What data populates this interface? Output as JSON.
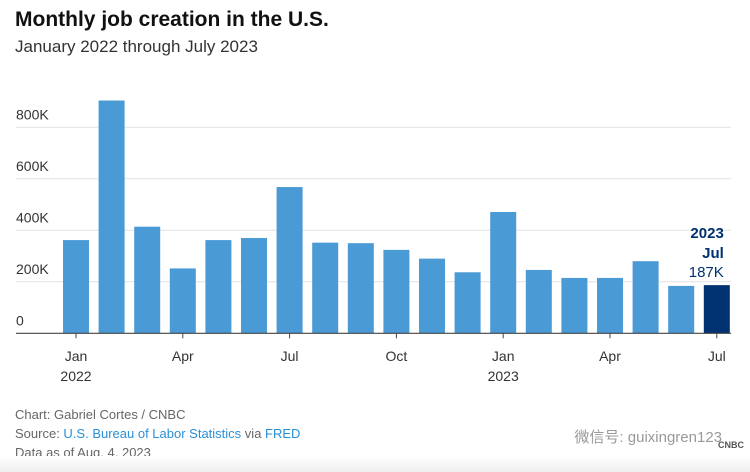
{
  "header": {
    "title": "Monthly job creation in the U.S.",
    "subtitle": "January 2022 through July 2023"
  },
  "chart_data": {
    "type": "bar",
    "categories": [
      "Jan 2022",
      "Feb 2022",
      "Mar 2022",
      "Apr 2022",
      "May 2022",
      "Jun 2022",
      "Jul 2022",
      "Aug 2022",
      "Sep 2022",
      "Oct 2022",
      "Nov 2022",
      "Dec 2022",
      "Jan 2023",
      "Feb 2023",
      "Mar 2023",
      "Apr 2023",
      "May 2023",
      "Jun 2023",
      "Jul 2023"
    ],
    "values": [
      362000,
      904000,
      414000,
      252000,
      362000,
      370000,
      568000,
      352000,
      350000,
      324000,
      290000,
      237000,
      471000,
      246000,
      215000,
      215000,
      280000,
      184000,
      187000
    ],
    "ylim": [
      0,
      900000
    ],
    "yticks": [
      {
        "v": 0,
        "label": "0"
      },
      {
        "v": 200000,
        "label": "200K"
      },
      {
        "v": 400000,
        "label": "400K"
      },
      {
        "v": 600000,
        "label": "600K"
      },
      {
        "v": 800000,
        "label": "800K"
      }
    ],
    "xticks": [
      {
        "i": 0,
        "label": "Jan",
        "year": "2022"
      },
      {
        "i": 3,
        "label": "Apr"
      },
      {
        "i": 6,
        "label": "Jul"
      },
      {
        "i": 9,
        "label": "Oct"
      },
      {
        "i": 12,
        "label": "Jan",
        "year": "2023"
      },
      {
        "i": 15,
        "label": "Apr"
      },
      {
        "i": 18,
        "label": "Jul"
      }
    ],
    "grid": true,
    "colors": {
      "bar": "#4a9ad6",
      "highlight": "#003170",
      "grid": "#e2e2e2",
      "axis": "#444"
    },
    "annotation": {
      "index": 18,
      "year": "2023",
      "month": "Jul",
      "value": "187K"
    }
  },
  "footer": {
    "credit": "Chart: Gabriel Cortes / CNBC",
    "source_prefix": "Source: ",
    "source_link": "U.S. Bureau of Labor Statistics",
    "source_via": " via ",
    "source_link2": "FRED",
    "data_as_of": "Data as of Aug. 4, 2023"
  },
  "watermark": "微信号: guixingren123",
  "logo": "CNBC"
}
